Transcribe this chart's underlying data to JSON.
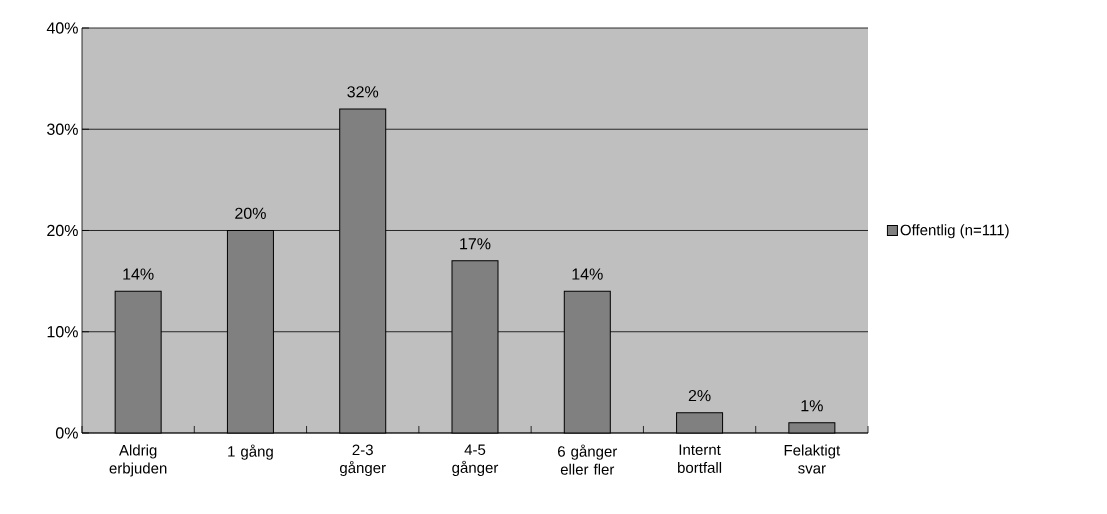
{
  "chart_data": {
    "type": "bar",
    "categories": [
      "Aldrig erbjuden",
      "1 gång",
      "2-3 gånger",
      "4-5 gånger",
      "6 gånger eller fler",
      "Internt bortfall",
      "Felaktigt svar"
    ],
    "series": [
      {
        "name": "Offentlig (n=111)",
        "color": "#808080",
        "values": [
          14,
          20,
          32,
          17,
          14,
          2,
          1
        ],
        "value_labels": [
          "14%",
          "20%",
          "32%",
          "17%",
          "14%",
          "2%",
          "1%"
        ]
      }
    ],
    "ylim": [
      0,
      40
    ],
    "yticks": [
      {
        "value": 0,
        "label": "0%"
      },
      {
        "value": 10,
        "label": "10%"
      },
      {
        "value": 20,
        "label": "20%"
      },
      {
        "value": 30,
        "label": "30%"
      },
      {
        "value": 40,
        "label": "40%"
      }
    ],
    "grid": "y",
    "legend": "right"
  }
}
